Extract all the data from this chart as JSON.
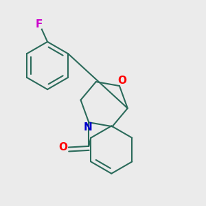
{
  "background_color": "#ebebeb",
  "bond_color": "#2a6a5a",
  "O_color": "#ff0000",
  "N_color": "#0000cc",
  "F_color": "#cc00cc",
  "line_width": 1.5,
  "font_size": 11,
  "fig_width": 3.0,
  "fig_height": 3.0,
  "dpi": 100,
  "xlim": [
    0.05,
    0.95
  ],
  "ylim": [
    0.05,
    0.95
  ]
}
